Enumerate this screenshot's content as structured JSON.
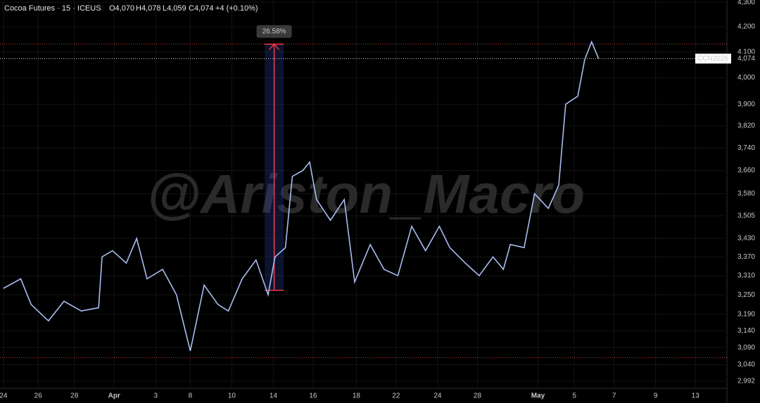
{
  "chart_data": {
    "type": "line",
    "title": "Cocoa Futures · 15 · ICEUS",
    "ohlc": [
      "O4,070",
      "H4,078",
      "L4,059",
      "C4,074"
    ],
    "change": "+4 (+0.10%)",
    "watermark": "@Ariston_Macro",
    "log_scale": true,
    "grid": true,
    "x": [
      0.0,
      1.0,
      1.6,
      2.6,
      3.5,
      4.5,
      5.5,
      5.7,
      6.3,
      7.1,
      7.7,
      8.3,
      9.2,
      10.0,
      10.8,
      11.6,
      12.4,
      13.0,
      13.8,
      14.6,
      15.3,
      15.7,
      16.3,
      16.7,
      17.3,
      17.7,
      18.1,
      18.9,
      19.7,
      20.3,
      21.2,
      22.0,
      22.8,
      23.6,
      24.4,
      25.2,
      25.8,
      26.7,
      27.5,
      28.3,
      28.9,
      29.3,
      30.1,
      30.7,
      31.5,
      32.1,
      32.5,
      33.2,
      33.6,
      34.0,
      34.4
    ],
    "series": [
      {
        "name": "CCN2026",
        "color": "#a9bdf0",
        "values": [
          3270,
          3300,
          3220,
          3170,
          3230,
          3200,
          3210,
          3370,
          3390,
          3350,
          3430,
          3300,
          3330,
          3250,
          3080,
          3280,
          3220,
          3200,
          3300,
          3360,
          3250,
          3370,
          3400,
          3640,
          3660,
          3690,
          3560,
          3490,
          3560,
          3290,
          3410,
          3330,
          3310,
          3470,
          3390,
          3470,
          3400,
          3350,
          3310,
          3370,
          3330,
          3410,
          3400,
          3580,
          3530,
          3610,
          3900,
          3930,
          4070,
          4140,
          4074
        ]
      }
    ],
    "xlim": [
      -0.2,
      41.7
    ],
    "xticks": [
      {
        "value": 0,
        "label": "24"
      },
      {
        "value": 2.0,
        "label": "26"
      },
      {
        "value": 4.1,
        "label": "28"
      },
      {
        "value": 6.4,
        "label": "Apr"
      },
      {
        "value": 8.8,
        "label": "3"
      },
      {
        "value": 10.8,
        "label": "8"
      },
      {
        "value": 13.2,
        "label": "10"
      },
      {
        "value": 15.6,
        "label": "14"
      },
      {
        "value": 17.9,
        "label": "16"
      },
      {
        "value": 20.4,
        "label": "18"
      },
      {
        "value": 22.7,
        "label": "22"
      },
      {
        "value": 25.1,
        "label": "24"
      },
      {
        "value": 27.4,
        "label": "28"
      },
      {
        "value": 30.9,
        "label": "May"
      },
      {
        "value": 33.0,
        "label": "5"
      },
      {
        "value": 35.3,
        "label": "7"
      },
      {
        "value": 37.7,
        "label": "9"
      },
      {
        "value": 40.0,
        "label": "13"
      }
    ],
    "ylim": [
      2972,
      4309
    ],
    "yticks": [
      {
        "value": 4300,
        "label": "4,300"
      },
      {
        "value": 4200,
        "label": "4,200"
      },
      {
        "value": 4100,
        "label": "4,100"
      },
      {
        "value": 4000,
        "label": "4,000"
      },
      {
        "value": 3900,
        "label": "3,900"
      },
      {
        "value": 3820,
        "label": "3,820"
      },
      {
        "value": 3740,
        "label": "3,740"
      },
      {
        "value": 3660,
        "label": "3,660"
      },
      {
        "value": 3580,
        "label": "3,580"
      },
      {
        "value": 3505,
        "label": "3,505"
      },
      {
        "value": 3430,
        "label": "3,430"
      },
      {
        "value": 3370,
        "label": "3,370"
      },
      {
        "value": 3310,
        "label": "3,310"
      },
      {
        "value": 3250,
        "label": "3,250"
      },
      {
        "value": 3190,
        "label": "3,190"
      },
      {
        "value": 3140,
        "label": "3,140"
      },
      {
        "value": 3090,
        "label": "3,090"
      },
      {
        "value": 3040,
        "label": "3,040"
      },
      {
        "value": 2992,
        "label": "2,992"
      }
    ],
    "hlines": [
      4131,
      3060
    ],
    "last_price": {
      "value": 4074,
      "label": "4,074",
      "symbol": "CCN2026"
    },
    "measure": {
      "label": "26.58%",
      "from": 3264,
      "to": 4131,
      "x_from": 15.1,
      "x_to": 16.2
    }
  }
}
